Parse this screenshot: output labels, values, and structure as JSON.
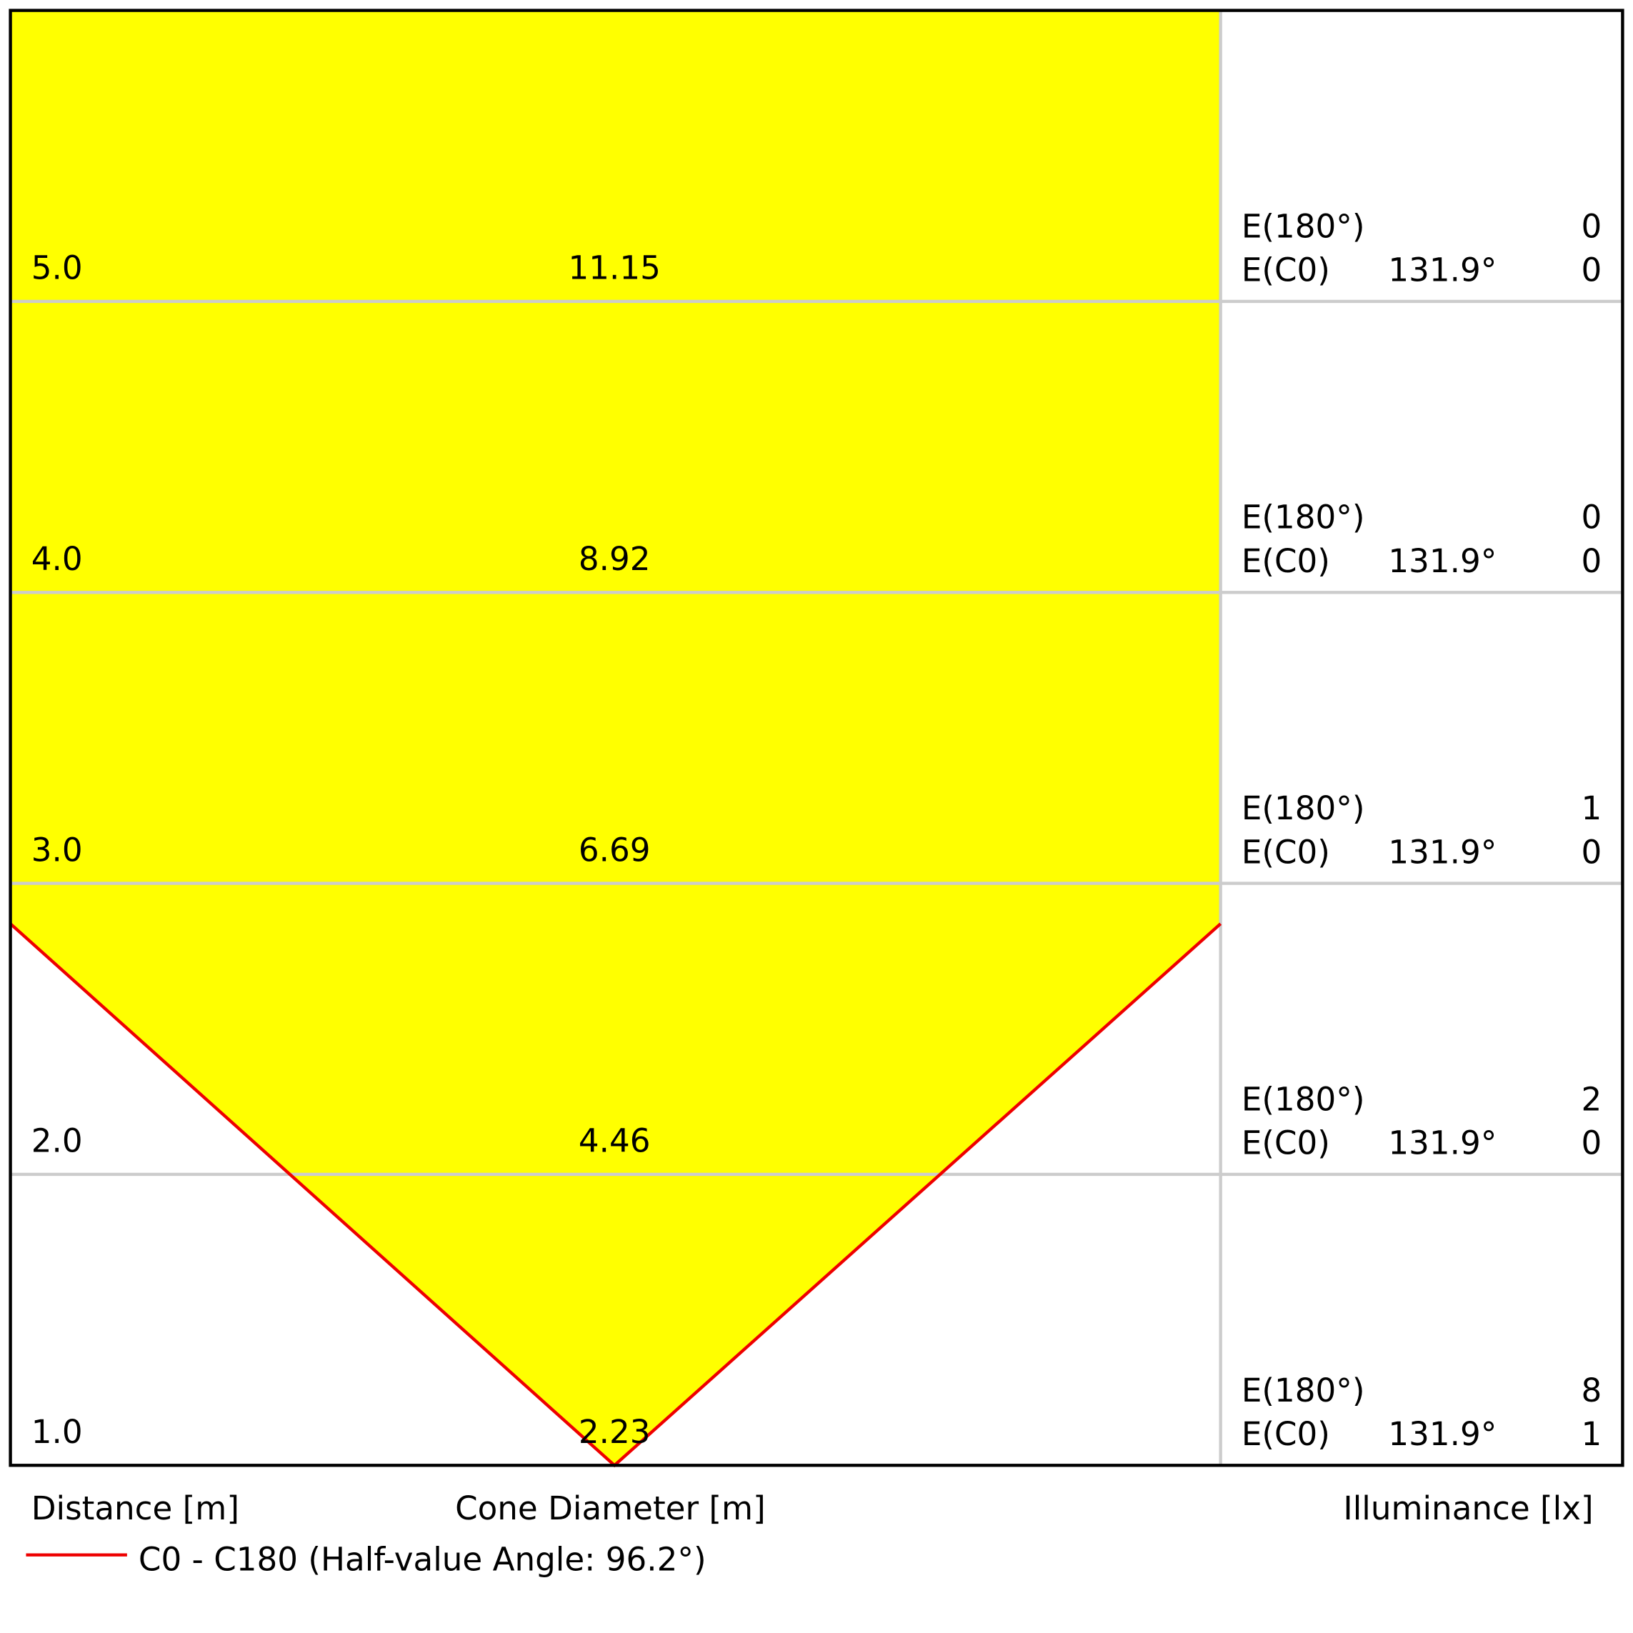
{
  "rows": [
    {
      "distance": "5.0",
      "diameter": "11.15",
      "e180_label": "E(180°)",
      "e180": "0",
      "ec0_label": "E(C0)",
      "ec0_angle": "131.9°",
      "ec0": "0"
    },
    {
      "distance": "4.0",
      "diameter": "8.92",
      "e180_label": "E(180°)",
      "e180": "0",
      "ec0_label": "E(C0)",
      "ec0_angle": "131.9°",
      "ec0": "0"
    },
    {
      "distance": "3.0",
      "diameter": "6.69",
      "e180_label": "E(180°)",
      "e180": "1",
      "ec0_label": "E(C0)",
      "ec0_angle": "131.9°",
      "ec0": "0"
    },
    {
      "distance": "2.0",
      "diameter": "4.46",
      "e180_label": "E(180°)",
      "e180": "2",
      "ec0_label": "E(C0)",
      "ec0_angle": "131.9°",
      "ec0": "0"
    },
    {
      "distance": "1.0",
      "diameter": "2.23",
      "e180_label": "E(180°)",
      "e180": "8",
      "ec0_label": "E(C0)",
      "ec0_angle": "131.9°",
      "ec0": "1"
    }
  ],
  "footer": {
    "distance_label": "Distance [m]",
    "diameter_label": "Cone Diameter [m]",
    "illuminance_label": "Illuminance [lx]"
  },
  "legend": {
    "label": "C0 - C180 (Half-value Angle: 96.2°)"
  }
}
